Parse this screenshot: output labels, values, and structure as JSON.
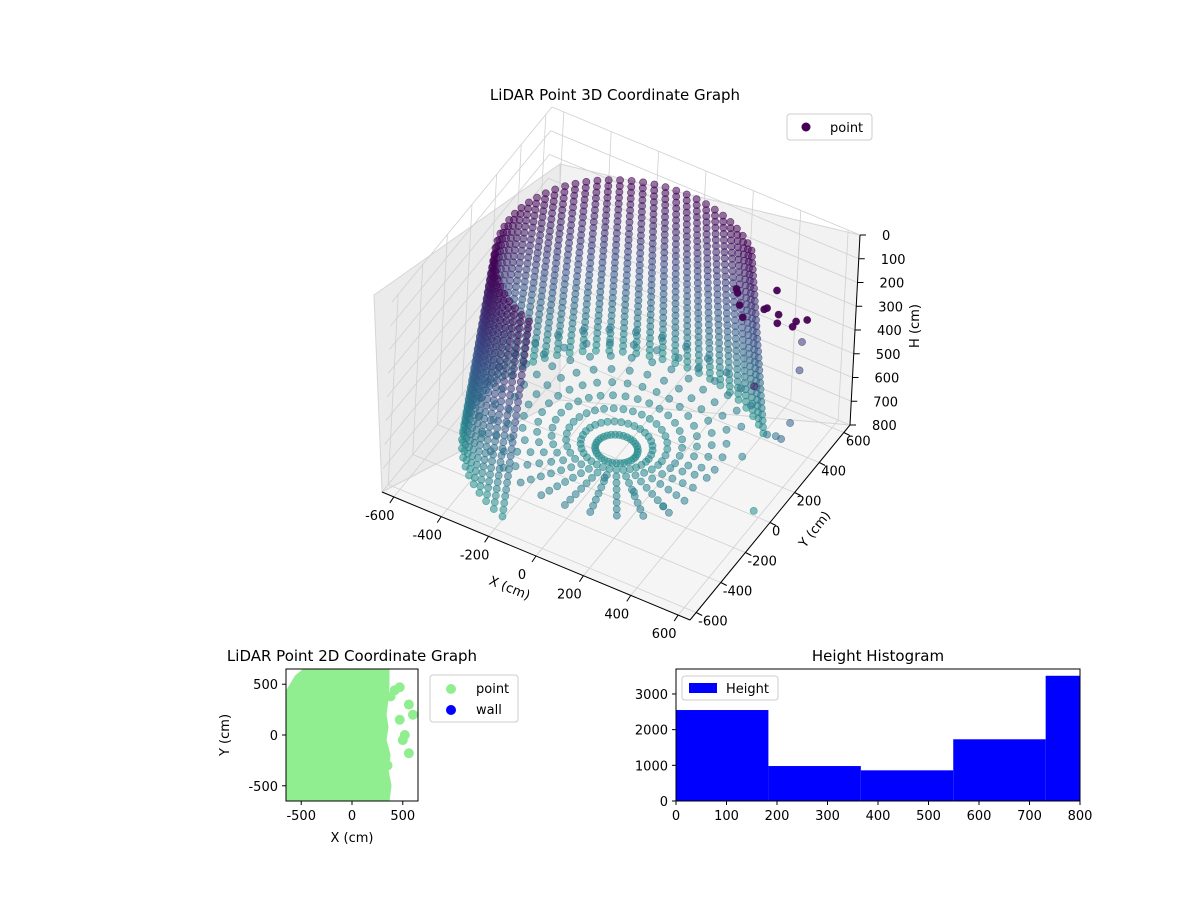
{
  "chart_data": [
    {
      "type": "scatter3d",
      "title": "LiDAR Point 3D Coordinate Graph",
      "xlabel": "X (cm)",
      "ylabel": "Y (cm)",
      "zlabel": "H (cm)",
      "xlim": [
        -650,
        650
      ],
      "ylim": [
        -650,
        650
      ],
      "zlim": [
        0,
        800
      ],
      "z_inverted": true,
      "x_ticks": [
        -600,
        -400,
        -200,
        0,
        200,
        400,
        600
      ],
      "y_ticks": [
        -600,
        -400,
        -200,
        0,
        200,
        400,
        600
      ],
      "z_ticks": [
        0,
        100,
        200,
        300,
        400,
        500,
        600,
        700,
        800
      ],
      "legend": {
        "position": "top-right",
        "entries": [
          "point"
        ]
      },
      "series": [
        {
          "name": "point",
          "colormap": [
            "#440154",
            "#3b528b",
            "#21918c"
          ],
          "wall_arc_degrees": [
            45,
            250
          ],
          "wall_radius": 580,
          "height_range": [
            0,
            800
          ],
          "cluster_points": [
            [
              300,
              350,
              200
            ],
            [
              320,
              330,
              230
            ],
            [
              280,
              380,
              210
            ],
            [
              350,
              300,
              250
            ],
            [
              380,
              420,
              280
            ],
            [
              420,
              360,
              220
            ],
            [
              450,
              400,
              260
            ],
            [
              480,
              330,
              240
            ],
            [
              500,
              450,
              300
            ],
            [
              520,
              380,
              270
            ],
            [
              560,
              420,
              250
            ],
            [
              400,
              480,
              230
            ]
          ],
          "scattered_points": [
            [
              600,
              300,
              250
            ],
            [
              620,
              250,
              330
            ],
            [
              640,
              150,
              480
            ],
            [
              630,
              100,
              520
            ],
            [
              560,
              200,
              600
            ],
            [
              500,
              250,
              650
            ],
            [
              450,
              150,
              700
            ],
            [
              580,
              0,
              780
            ],
            [
              300,
              -200,
              750
            ],
            [
              200,
              -250,
              700
            ],
            [
              100,
              -300,
              650
            ],
            [
              650,
              -200,
              100
            ]
          ]
        }
      ]
    },
    {
      "type": "scatter",
      "title": "LiDAR Point 2D Coordinate Graph",
      "xlabel": "X (cm)",
      "ylabel": "Y (cm)",
      "xlim": [
        -650,
        650
      ],
      "ylim": [
        -650,
        650
      ],
      "x_ticks": [
        -500,
        0,
        500
      ],
      "y_ticks": [
        -500,
        0,
        500
      ],
      "legend": {
        "position": "outside-right",
        "entries": [
          "point",
          "wall"
        ]
      },
      "series": [
        {
          "name": "point",
          "color": "#90ee90",
          "region_polygon": [
            [
              -650,
              360
            ],
            [
              -530,
              560
            ],
            [
              -420,
              650
            ],
            [
              330,
              650
            ],
            [
              330,
              500
            ],
            [
              320,
              350
            ],
            [
              300,
              200
            ],
            [
              320,
              80
            ],
            [
              300,
              -50
            ],
            [
              340,
              -200
            ],
            [
              320,
              -350
            ],
            [
              350,
              -500
            ],
            [
              330,
              -650
            ],
            [
              -650,
              -650
            ]
          ],
          "edge_points": [
            [
              420,
              440
            ],
            [
              470,
              470
            ],
            [
              380,
              380
            ],
            [
              560,
              300
            ],
            [
              470,
              150
            ],
            [
              600,
              200
            ],
            [
              520,
              0
            ],
            [
              500,
              -50
            ],
            [
              560,
              -180
            ],
            [
              350,
              -300
            ]
          ]
        },
        {
          "name": "wall",
          "color": "#0000ff",
          "points": []
        }
      ]
    },
    {
      "type": "histogram",
      "title": "Height Histogram",
      "xlabel": "",
      "ylabel": "",
      "xlim": [
        0,
        800
      ],
      "ylim": [
        0,
        3700
      ],
      "x_ticks": [
        0,
        100,
        200,
        300,
        400,
        500,
        600,
        700,
        800
      ],
      "y_ticks": [
        0,
        1000,
        2000,
        3000
      ],
      "legend": {
        "position": "top-left",
        "entries": [
          "Height"
        ]
      },
      "series": [
        {
          "name": "Height",
          "color": "#0000ff",
          "bin_edges": [
            0,
            183,
            366,
            549,
            732,
            800
          ],
          "values": [
            2550,
            980,
            860,
            1730,
            3510
          ]
        }
      ]
    }
  ]
}
